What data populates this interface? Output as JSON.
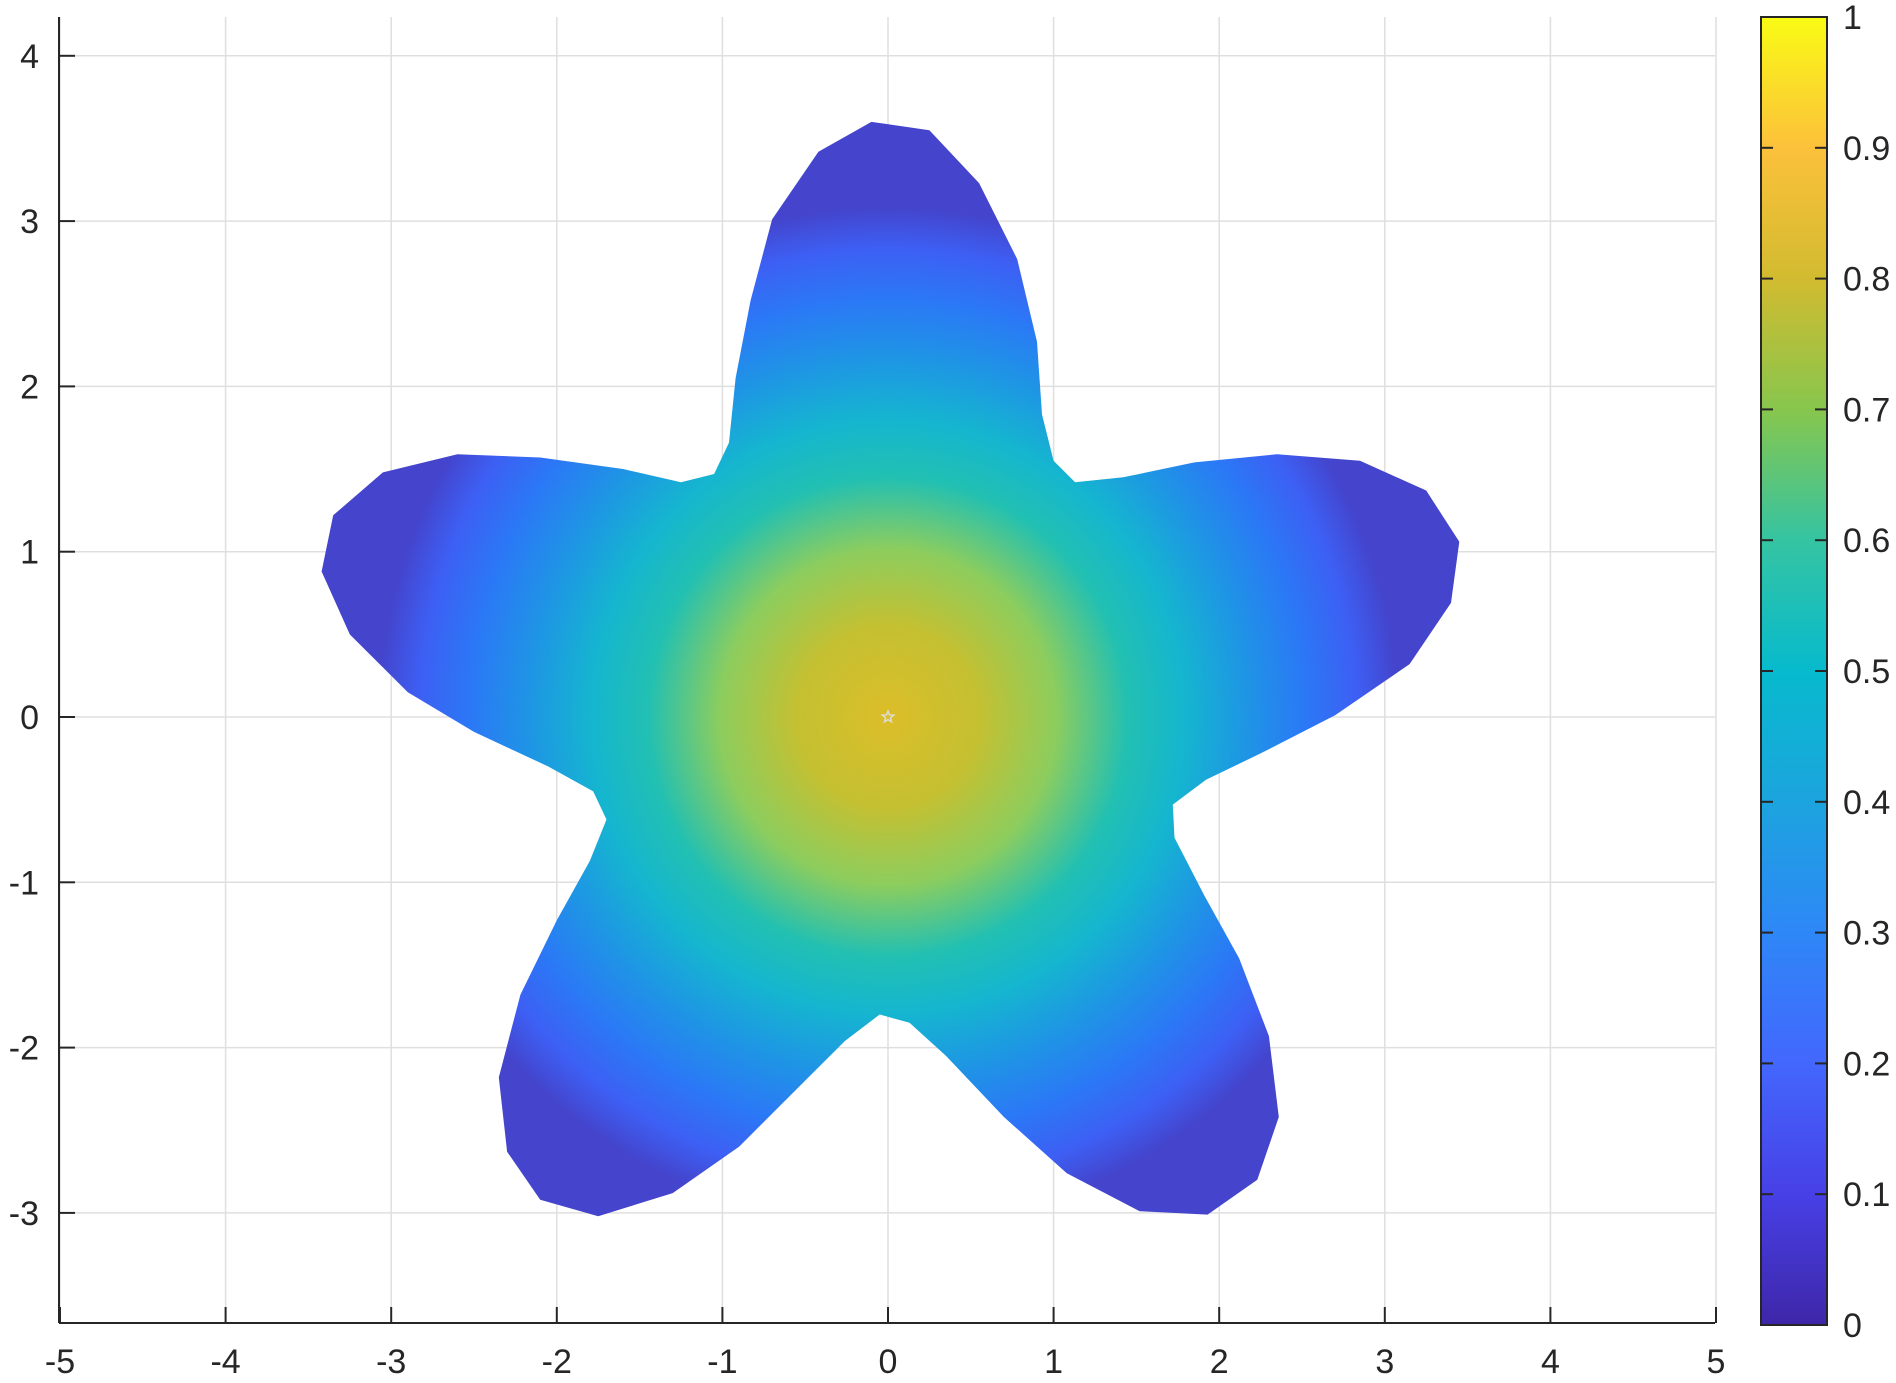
{
  "chart_data": {
    "type": "heatmap",
    "title": "",
    "xlabel": "",
    "ylabel": "",
    "xlim": [
      -5,
      5
    ],
    "ylim": [
      -3.65,
      4.25
    ],
    "xticks": [
      "-5",
      "-4",
      "-3",
      "-2",
      "-1",
      "0",
      "1",
      "2",
      "3",
      "4",
      "5"
    ],
    "yticks": [
      "-3",
      "-2",
      "-1",
      "0",
      "1",
      "2",
      "3",
      "4"
    ],
    "grid": true,
    "colormap": "parula",
    "colorbar": {
      "placement": "right",
      "range": [
        0,
        1
      ],
      "ticks": [
        "0",
        "0.1",
        "0.2",
        "0.3",
        "0.4",
        "0.5",
        "0.6",
        "0.7",
        "0.8",
        "0.9",
        "1"
      ]
    },
    "region": {
      "shape": "five-pointed star",
      "value_at_center": 0.82,
      "value_at_boundary": 0.05,
      "boundary": [
        [
          -0.1,
          3.6
        ],
        [
          0.25,
          3.55
        ],
        [
          0.55,
          3.23
        ],
        [
          0.78,
          2.77
        ],
        [
          0.9,
          2.27
        ],
        [
          0.93,
          1.83
        ],
        [
          1.0,
          1.55
        ],
        [
          1.13,
          1.42
        ],
        [
          1.42,
          1.45
        ],
        [
          1.85,
          1.54
        ],
        [
          2.35,
          1.59
        ],
        [
          2.85,
          1.55
        ],
        [
          3.25,
          1.37
        ],
        [
          3.45,
          1.06
        ],
        [
          3.4,
          0.69
        ],
        [
          3.15,
          0.32
        ],
        [
          2.7,
          0.01
        ],
        [
          2.25,
          -0.22
        ],
        [
          1.92,
          -0.38
        ],
        [
          1.72,
          -0.53
        ],
        [
          1.73,
          -0.73
        ],
        [
          1.91,
          -1.08
        ],
        [
          2.12,
          -1.46
        ],
        [
          2.3,
          -1.93
        ],
        [
          2.36,
          -2.42
        ],
        [
          2.23,
          -2.8
        ],
        [
          1.93,
          -3.01
        ],
        [
          1.52,
          -2.99
        ],
        [
          1.08,
          -2.76
        ],
        [
          0.7,
          -2.42
        ],
        [
          0.35,
          -2.05
        ],
        [
          0.13,
          -1.85
        ],
        [
          -0.05,
          -1.8
        ],
        [
          -0.26,
          -1.96
        ],
        [
          -0.55,
          -2.25
        ],
        [
          -0.9,
          -2.6
        ],
        [
          -1.3,
          -2.88
        ],
        [
          -1.75,
          -3.02
        ],
        [
          -2.1,
          -2.92
        ],
        [
          -2.3,
          -2.63
        ],
        [
          -2.35,
          -2.18
        ],
        [
          -2.22,
          -1.68
        ],
        [
          -2.0,
          -1.23
        ],
        [
          -1.8,
          -0.87
        ],
        [
          -1.7,
          -0.62
        ],
        [
          -1.78,
          -0.45
        ],
        [
          -2.05,
          -0.3
        ],
        [
          -2.5,
          -0.09
        ],
        [
          -2.9,
          0.15
        ],
        [
          -3.25,
          0.5
        ],
        [
          -3.42,
          0.88
        ],
        [
          -3.35,
          1.22
        ],
        [
          -3.05,
          1.48
        ],
        [
          -2.6,
          1.59
        ],
        [
          -2.1,
          1.57
        ],
        [
          -1.6,
          1.5
        ],
        [
          -1.25,
          1.42
        ],
        [
          -1.05,
          1.47
        ],
        [
          -0.96,
          1.66
        ],
        [
          -0.92,
          2.05
        ],
        [
          -0.83,
          2.52
        ],
        [
          -0.7,
          3.01
        ],
        [
          -0.42,
          3.42
        ]
      ]
    },
    "marker": {
      "x": 0,
      "y": 0,
      "symbol": "pentagram",
      "color": "#dddddd"
    }
  }
}
